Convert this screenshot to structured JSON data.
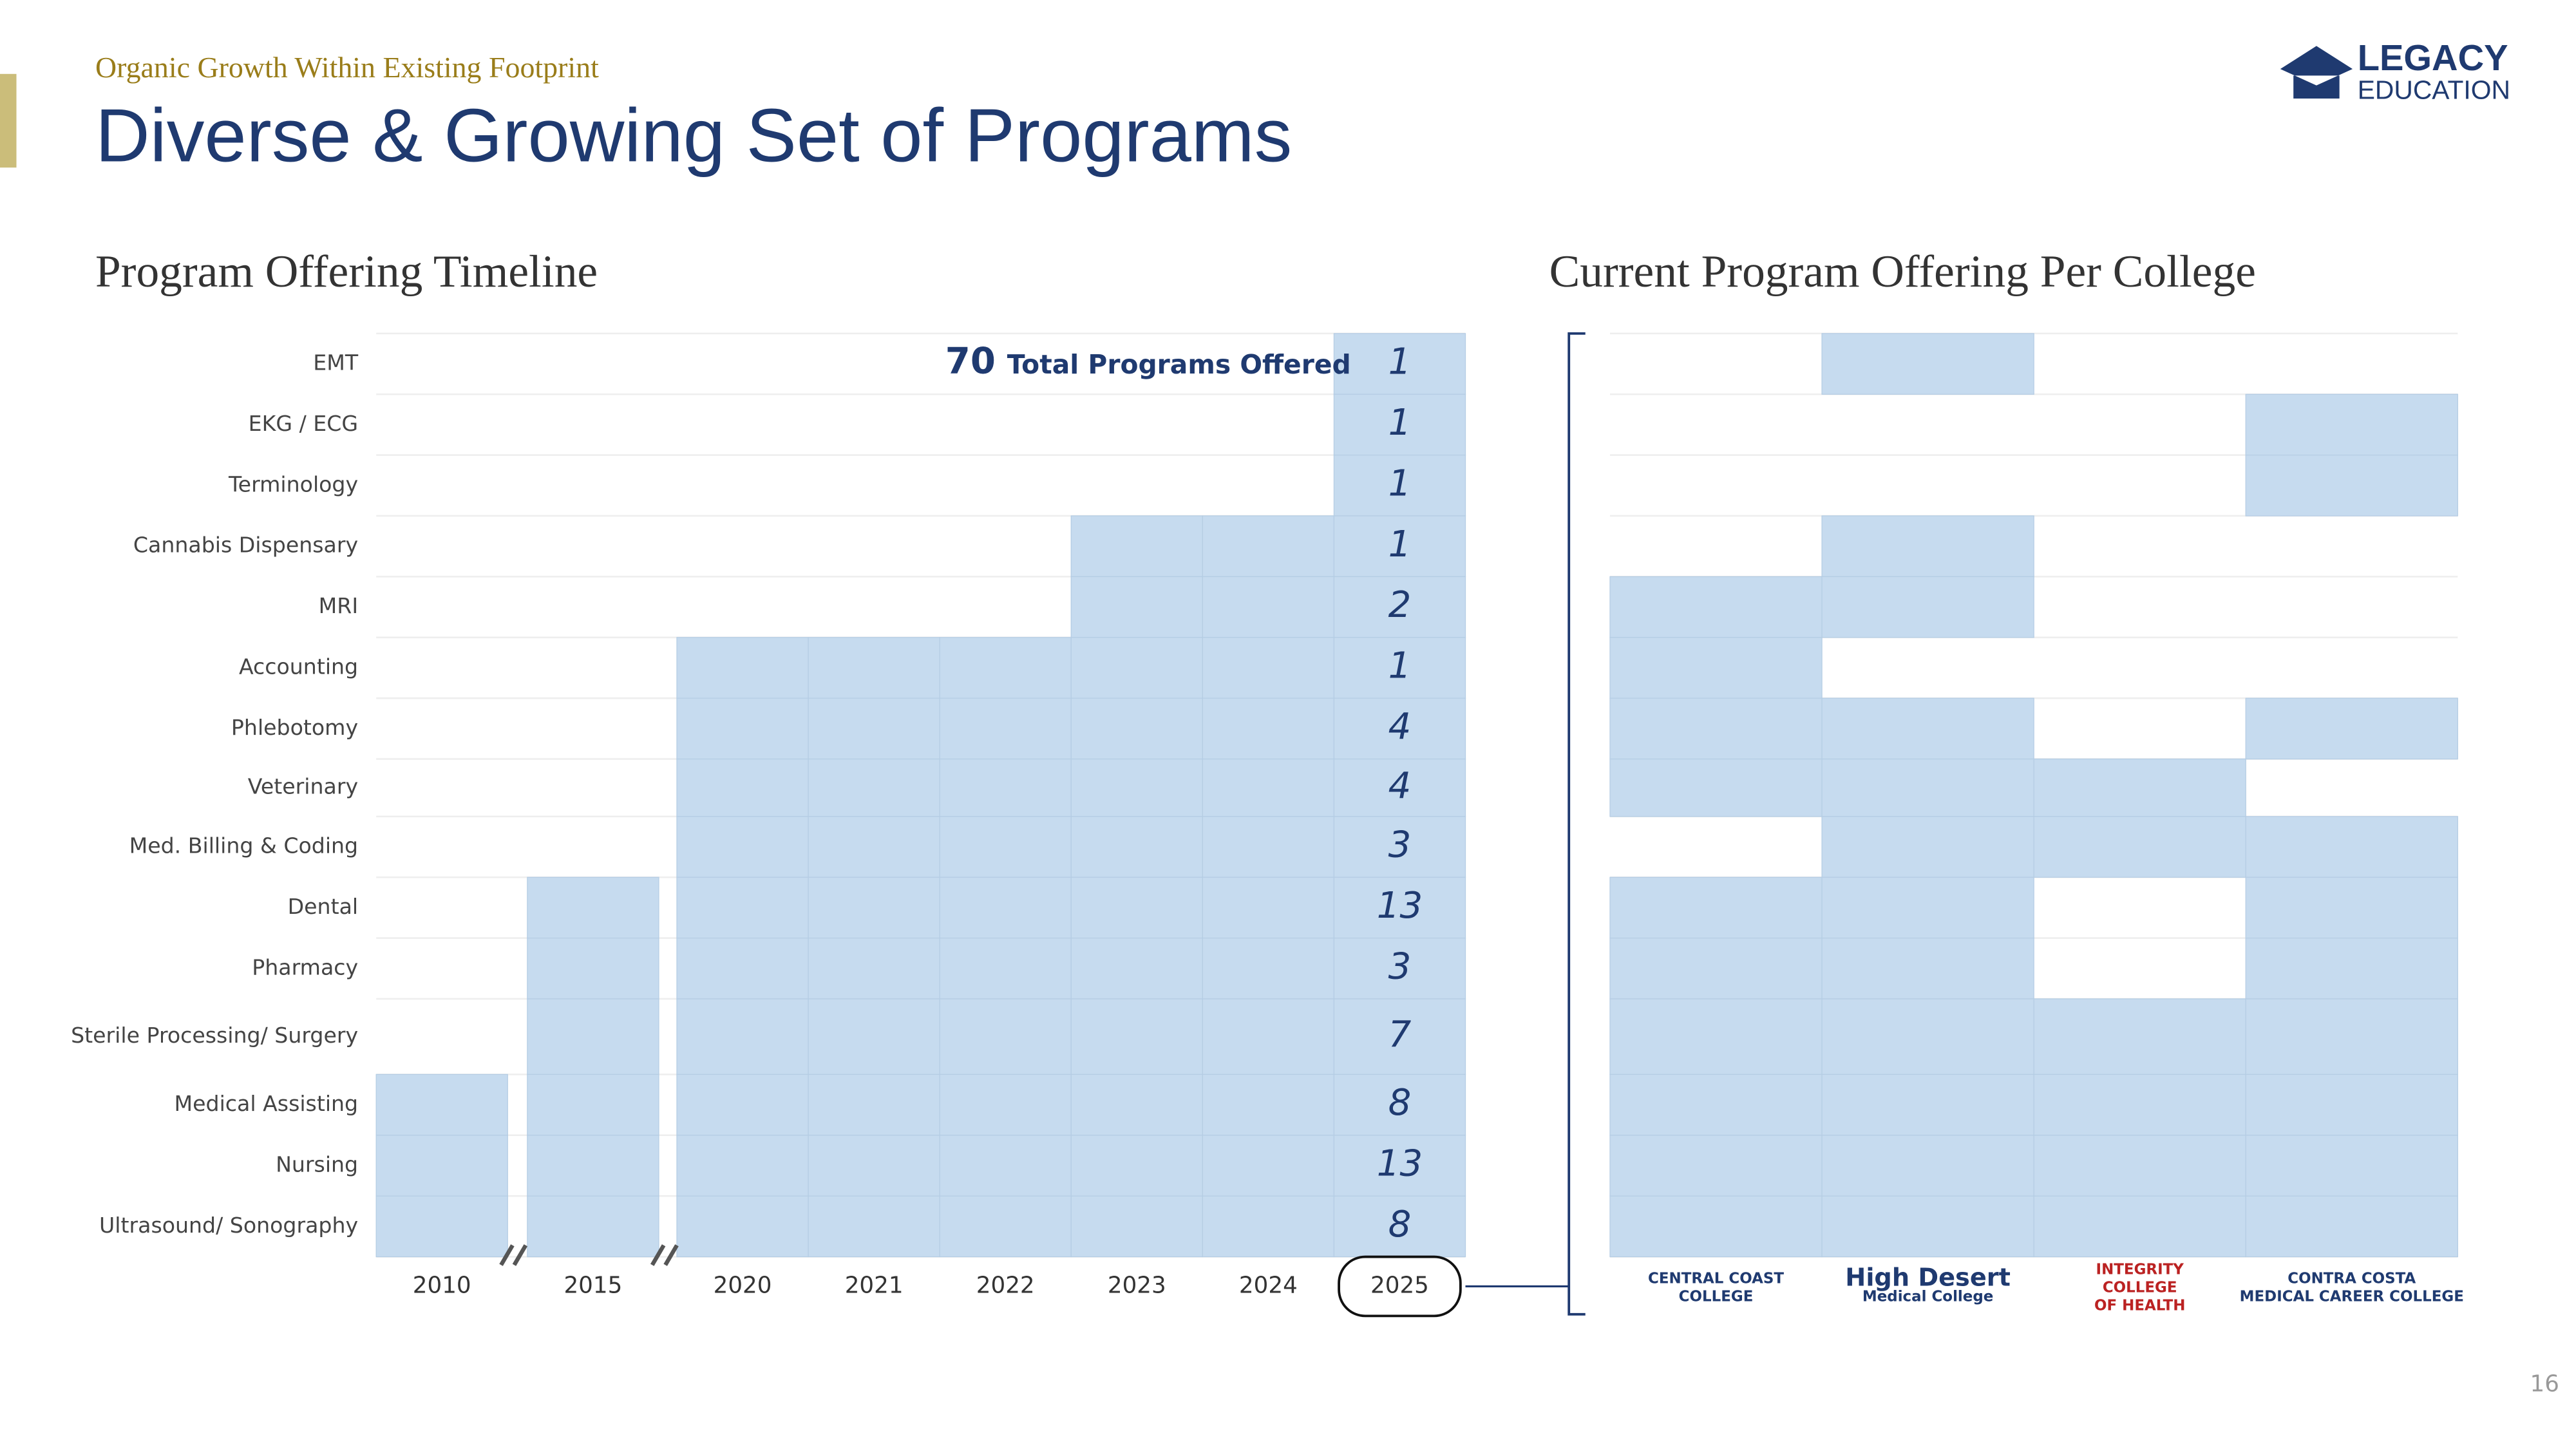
{
  "header": {
    "kicker": "Organic Growth Within Existing Footprint",
    "title": "Diverse & Growing Set of Programs",
    "logo": [
      "LEGACY",
      "EDUCATION"
    ]
  },
  "timeline": {
    "title": "Program Offering Timeline",
    "total": "70",
    "total_label": "Total Programs Offered",
    "years": [
      "2010",
      "2015",
      "2020",
      "2021",
      "2022",
      "2023",
      "2024",
      "2025"
    ],
    "programs": [
      {
        "name": "EMT",
        "start": "2025",
        "count": "1",
        "colleges": [
          false,
          true,
          false,
          false
        ]
      },
      {
        "name": "EKG / ECG",
        "start": "2025",
        "count": "1",
        "colleges": [
          false,
          false,
          false,
          true
        ]
      },
      {
        "name": "Terminology",
        "start": "2025",
        "count": "1",
        "colleges": [
          false,
          false,
          false,
          true
        ]
      },
      {
        "name": "Cannabis Dispensary",
        "start": "2023",
        "count": "1",
        "colleges": [
          false,
          true,
          false,
          false
        ]
      },
      {
        "name": "MRI",
        "start": "2023",
        "count": "2",
        "colleges": [
          true,
          true,
          false,
          false
        ]
      },
      {
        "name": "Accounting",
        "start": "2020",
        "count": "1",
        "colleges": [
          true,
          false,
          false,
          false
        ]
      },
      {
        "name": "Phlebotomy",
        "start": "2020",
        "count": "4",
        "colleges": [
          true,
          true,
          false,
          true
        ]
      },
      {
        "name": "Veterinary",
        "start": "2020",
        "count": "4",
        "colleges": [
          true,
          true,
          true,
          false
        ]
      },
      {
        "name": "Med. Billing & Coding",
        "start": "2020",
        "count": "3",
        "colleges": [
          false,
          true,
          true,
          true
        ]
      },
      {
        "name": "Dental",
        "start": "2015",
        "count": "13",
        "colleges": [
          true,
          true,
          false,
          true
        ]
      },
      {
        "name": "Pharmacy",
        "start": "2015",
        "count": "3",
        "colleges": [
          true,
          true,
          false,
          true
        ]
      },
      {
        "name": "Sterile Processing/ Surgery",
        "start": "2015",
        "count": "7",
        "colleges": [
          true,
          true,
          true,
          true
        ]
      },
      {
        "name": "Medical Assisting",
        "start": "2010",
        "count": "8",
        "colleges": [
          true,
          true,
          true,
          true
        ]
      },
      {
        "name": "Nursing",
        "start": "2010",
        "count": "13",
        "colleges": [
          true,
          true,
          true,
          true
        ]
      },
      {
        "name": "Ultrasound/ Sonography",
        "start": "2010",
        "count": "8",
        "colleges": [
          true,
          true,
          true,
          true
        ]
      }
    ]
  },
  "colleges": {
    "title": "Current Program Offering Per College",
    "logos": [
      [
        "CENTRAL COAST",
        "COLLEGE"
      ],
      [
        "High Desert",
        "Medical College"
      ],
      [
        "INTEGRITY",
        "COLLEGE",
        "OF HEALTH"
      ],
      [
        "CONTRA COSTA",
        "MEDICAL CAREER COLLEGE"
      ]
    ]
  },
  "page_number": "16"
}
